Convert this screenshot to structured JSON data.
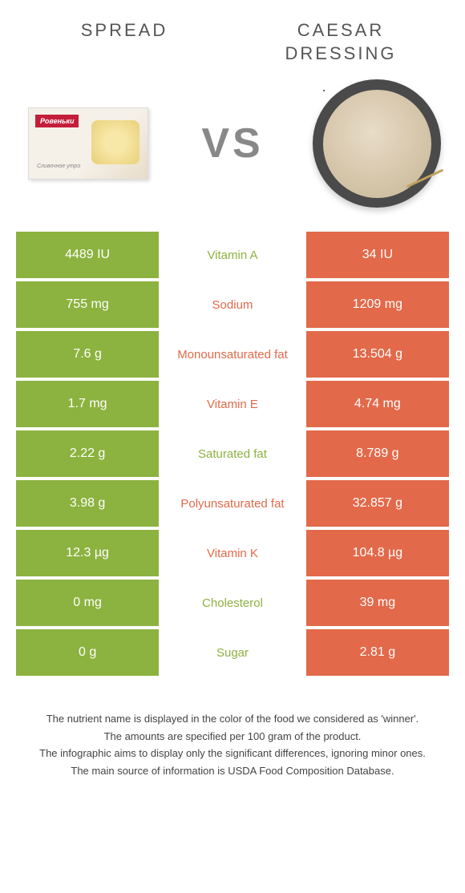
{
  "header": {
    "left_title": "SPREAD",
    "right_title": "CAESAR DRESSING",
    "vs_label": "VS"
  },
  "colors": {
    "left": "#8cb23f",
    "right": "#e2694a",
    "left_text": "#8cb23f",
    "right_text": "#e2694a"
  },
  "rows": [
    {
      "left": "4489 IU",
      "mid": "Vitamin A",
      "right": "34 IU",
      "winner": "left"
    },
    {
      "left": "755 mg",
      "mid": "Sodium",
      "right": "1209 mg",
      "winner": "right"
    },
    {
      "left": "7.6 g",
      "mid": "Monounsaturated fat",
      "right": "13.504 g",
      "winner": "right"
    },
    {
      "left": "1.7 mg",
      "mid": "Vitamin E",
      "right": "4.74 mg",
      "winner": "right"
    },
    {
      "left": "2.22 g",
      "mid": "Saturated fat",
      "right": "8.789 g",
      "winner": "left"
    },
    {
      "left": "3.98 g",
      "mid": "Polyunsaturated fat",
      "right": "32.857 g",
      "winner": "right"
    },
    {
      "left": "12.3 µg",
      "mid": "Vitamin K",
      "right": "104.8 µg",
      "winner": "right"
    },
    {
      "left": "0 mg",
      "mid": "Cholesterol",
      "right": "39 mg",
      "winner": "left"
    },
    {
      "left": "0 g",
      "mid": "Sugar",
      "right": "2.81 g",
      "winner": "left"
    }
  ],
  "footer": {
    "line1": "The nutrient name is displayed in the color of the food we considered as 'winner'.",
    "line2": "The amounts are specified per 100 gram of the product.",
    "line3": "The infographic aims to display only the significant differences, ignoring minor ones.",
    "line4": "The main source of information is USDA Food Composition Database."
  },
  "spread_pack": {
    "brand": "Ровеньки",
    "sub": "Сливочное утро"
  }
}
